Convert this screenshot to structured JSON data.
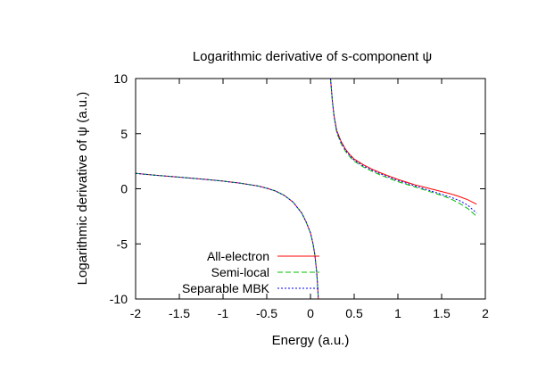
{
  "chart_data": {
    "type": "line",
    "title": "Logarithmic derivative of s-component ψ",
    "xlabel": "Energy (a.u.)",
    "ylabel": "Logarithmic derivative of ψ (a.u.)",
    "xlim": [
      -2,
      2
    ],
    "ylim": [
      -10,
      10
    ],
    "xticks": [
      -2,
      -1.5,
      -1,
      -0.5,
      0,
      0.5,
      1,
      1.5,
      2
    ],
    "xtick_labels": [
      "-2",
      "-1.5",
      "-1",
      "-0.5",
      "0",
      "0.5",
      "1",
      "1.5",
      "2"
    ],
    "yticks": [
      -10,
      -5,
      0,
      5,
      10
    ],
    "ytick_labels": [
      "-10",
      "-5",
      "0",
      "5",
      "10"
    ],
    "grid": false,
    "legend_position": "bottom-left",
    "series": [
      {
        "name": "All-electron",
        "color": "#ff0000",
        "dash": "solid",
        "segments": [
          {
            "x": [
              -2.0,
              -1.8,
              -1.5,
              -1.2,
              -1.0,
              -0.8,
              -0.6,
              -0.5,
              -0.4,
              -0.3,
              -0.2,
              -0.1,
              -0.05,
              0.0,
              0.03,
              0.05,
              0.07,
              0.08,
              0.09
            ],
            "y": [
              1.4,
              1.25,
              1.05,
              0.85,
              0.7,
              0.5,
              0.25,
              0.05,
              -0.2,
              -0.6,
              -1.2,
              -2.2,
              -3.0,
              -4.0,
              -5.0,
              -6.0,
              -7.5,
              -8.5,
              -10.0
            ]
          },
          {
            "x": [
              0.23,
              0.24,
              0.25,
              0.27,
              0.3,
              0.35,
              0.4,
              0.45,
              0.5,
              0.6,
              0.7,
              0.8,
              0.9,
              1.0,
              1.1,
              1.2,
              1.3,
              1.4,
              1.5,
              1.6,
              1.7,
              1.8,
              1.9
            ],
            "y": [
              10.0,
              9.0,
              8.0,
              6.6,
              5.3,
              4.3,
              3.6,
              3.1,
              2.7,
              2.2,
              1.8,
              1.45,
              1.15,
              0.85,
              0.6,
              0.35,
              0.15,
              -0.05,
              -0.25,
              -0.45,
              -0.7,
              -1.0,
              -1.4
            ]
          }
        ]
      },
      {
        "name": "Semi-local",
        "color": "#00c000",
        "dash": "dashed",
        "segments": [
          {
            "x": [
              -2.0,
              -1.8,
              -1.5,
              -1.2,
              -1.0,
              -0.8,
              -0.6,
              -0.5,
              -0.4,
              -0.3,
              -0.2,
              -0.1,
              -0.05,
              0.0,
              0.03,
              0.05,
              0.07,
              0.08,
              0.09
            ],
            "y": [
              1.4,
              1.25,
              1.05,
              0.85,
              0.7,
              0.5,
              0.25,
              0.05,
              -0.2,
              -0.6,
              -1.2,
              -2.2,
              -3.0,
              -4.0,
              -5.0,
              -6.0,
              -7.5,
              -8.5,
              -10.0
            ]
          },
          {
            "x": [
              0.23,
              0.24,
              0.25,
              0.27,
              0.3,
              0.35,
              0.4,
              0.45,
              0.5,
              0.6,
              0.7,
              0.8,
              0.9,
              1.0,
              1.1,
              1.2,
              1.3,
              1.4,
              1.5,
              1.6,
              1.7,
              1.8,
              1.9
            ],
            "y": [
              10.0,
              9.0,
              8.0,
              6.5,
              5.1,
              4.1,
              3.4,
              2.9,
              2.5,
              2.0,
              1.6,
              1.25,
              0.95,
              0.65,
              0.4,
              0.15,
              -0.1,
              -0.35,
              -0.6,
              -0.9,
              -1.3,
              -1.8,
              -2.5
            ]
          }
        ]
      },
      {
        "name": "Separable MBK",
        "color": "#0000ff",
        "dash": "dotted",
        "segments": [
          {
            "x": [
              -2.0,
              -1.8,
              -1.5,
              -1.2,
              -1.0,
              -0.8,
              -0.6,
              -0.5,
              -0.4,
              -0.3,
              -0.2,
              -0.1,
              -0.05,
              0.0,
              0.03,
              0.05,
              0.07,
              0.08,
              0.09
            ],
            "y": [
              1.4,
              1.25,
              1.05,
              0.85,
              0.7,
              0.5,
              0.25,
              0.05,
              -0.2,
              -0.6,
              -1.2,
              -2.2,
              -3.0,
              -4.0,
              -5.0,
              -6.0,
              -7.5,
              -8.5,
              -10.0
            ]
          },
          {
            "x": [
              0.23,
              0.24,
              0.25,
              0.27,
              0.3,
              0.35,
              0.4,
              0.45,
              0.5,
              0.6,
              0.7,
              0.8,
              0.9,
              1.0,
              1.1,
              1.2,
              1.3,
              1.4,
              1.5,
              1.6,
              1.7,
              1.8,
              1.9
            ],
            "y": [
              10.0,
              9.0,
              8.0,
              6.55,
              5.2,
              4.2,
              3.5,
              3.0,
              2.6,
              2.1,
              1.7,
              1.35,
              1.05,
              0.75,
              0.5,
              0.25,
              0.0,
              -0.25,
              -0.5,
              -0.75,
              -1.05,
              -1.5,
              -2.2
            ]
          }
        ]
      }
    ]
  }
}
